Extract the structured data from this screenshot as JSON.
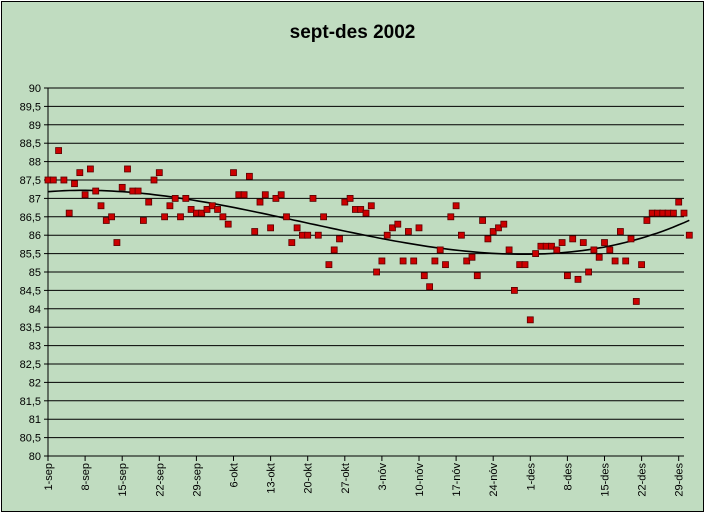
{
  "colors": {
    "chart_area": "#c0dcc0",
    "plot_area": "#c0dcc0",
    "gridline": "#000000",
    "marker_fill": "#cc0000",
    "marker_stroke": "#5a0000",
    "trendline": "#000000"
  },
  "chart_data": {
    "type": "scatter",
    "title": "sept-des 2002",
    "xlabel": "",
    "ylabel": "",
    "ylim": [
      80,
      90
    ],
    "y_ticks": [
      "80",
      "80,5",
      "81",
      "81,5",
      "82",
      "82,5",
      "83",
      "83,5",
      "84",
      "84,5",
      "85",
      "85,5",
      "86",
      "86,5",
      "87",
      "87,5",
      "88",
      "88,5",
      "89",
      "89,5",
      "90"
    ],
    "x_tick_labels": [
      "1-sep",
      "8-sep",
      "15-sep",
      "22-sep",
      "29-sep",
      "6-okt",
      "13-okt",
      "20-okt",
      "27-okt",
      "3-nóv",
      "10-nóv",
      "17-nóv",
      "24-nóv",
      "1-des",
      "8-des",
      "15-des",
      "22-des",
      "29-des"
    ],
    "x_tick_dates": [
      "2002-09-01",
      "2002-09-08",
      "2002-09-15",
      "2002-09-22",
      "2002-09-29",
      "2002-10-06",
      "2002-10-13",
      "2002-10-20",
      "2002-10-27",
      "2002-11-03",
      "2002-11-10",
      "2002-11-17",
      "2002-11-24",
      "2002-12-01",
      "2002-12-08",
      "2002-12-15",
      "2002-12-22",
      "2002-12-29"
    ],
    "xlim": [
      "2002-09-01",
      "2002-12-30"
    ],
    "grid": "horizontal",
    "legend": "none",
    "trendline": "polynomial",
    "series": [
      {
        "points": [
          [
            "2002-09-01",
            87.5
          ],
          [
            "2002-09-02",
            87.5
          ],
          [
            "2002-09-03",
            88.3
          ],
          [
            "2002-09-04",
            87.5
          ],
          [
            "2002-09-05",
            86.6
          ],
          [
            "2002-09-06",
            87.4
          ],
          [
            "2002-09-07",
            87.7
          ],
          [
            "2002-09-08",
            87.1
          ],
          [
            "2002-09-09",
            87.8
          ],
          [
            "2002-09-10",
            87.2
          ],
          [
            "2002-09-11",
            86.8
          ],
          [
            "2002-09-12",
            86.4
          ],
          [
            "2002-09-13",
            86.5
          ],
          [
            "2002-09-14",
            85.8
          ],
          [
            "2002-09-15",
            87.3
          ],
          [
            "2002-09-16",
            87.8
          ],
          [
            "2002-09-17",
            87.2
          ],
          [
            "2002-09-18",
            87.2
          ],
          [
            "2002-09-19",
            86.4
          ],
          [
            "2002-09-20",
            86.9
          ],
          [
            "2002-09-21",
            87.5
          ],
          [
            "2002-09-22",
            87.7
          ],
          [
            "2002-09-23",
            86.5
          ],
          [
            "2002-09-24",
            86.8
          ],
          [
            "2002-09-25",
            87.0
          ],
          [
            "2002-09-26",
            86.5
          ],
          [
            "2002-09-27",
            87.0
          ],
          [
            "2002-09-28",
            86.7
          ],
          [
            "2002-09-29",
            86.6
          ],
          [
            "2002-09-30",
            86.6
          ],
          [
            "2002-10-01",
            86.7
          ],
          [
            "2002-10-02",
            86.8
          ],
          [
            "2002-10-03",
            86.7
          ],
          [
            "2002-10-04",
            86.5
          ],
          [
            "2002-10-05",
            86.3
          ],
          [
            "2002-10-06",
            87.7
          ],
          [
            "2002-10-07",
            87.1
          ],
          [
            "2002-10-08",
            87.1
          ],
          [
            "2002-10-09",
            87.6
          ],
          [
            "2002-10-10",
            86.1
          ],
          [
            "2002-10-11",
            86.9
          ],
          [
            "2002-10-12",
            87.1
          ],
          [
            "2002-10-13",
            86.2
          ],
          [
            "2002-10-14",
            87.0
          ],
          [
            "2002-10-15",
            87.1
          ],
          [
            "2002-10-16",
            86.5
          ],
          [
            "2002-10-17",
            85.8
          ],
          [
            "2002-10-18",
            86.2
          ],
          [
            "2002-10-19",
            86.0
          ],
          [
            "2002-10-20",
            86.0
          ],
          [
            "2002-10-21",
            87.0
          ],
          [
            "2002-10-22",
            86.0
          ],
          [
            "2002-10-23",
            86.5
          ],
          [
            "2002-10-24",
            85.2
          ],
          [
            "2002-10-25",
            85.6
          ],
          [
            "2002-10-26",
            85.9
          ],
          [
            "2002-10-27",
            86.9
          ],
          [
            "2002-10-28",
            87.0
          ],
          [
            "2002-10-29",
            86.7
          ],
          [
            "2002-10-30",
            86.7
          ],
          [
            "2002-10-31",
            86.6
          ],
          [
            "2002-11-01",
            86.8
          ],
          [
            "2002-11-02",
            85.0
          ],
          [
            "2002-11-03",
            85.3
          ],
          [
            "2002-11-04",
            86.0
          ],
          [
            "2002-11-05",
            86.2
          ],
          [
            "2002-11-06",
            86.3
          ],
          [
            "2002-11-07",
            85.3
          ],
          [
            "2002-11-08",
            86.1
          ],
          [
            "2002-11-09",
            85.3
          ],
          [
            "2002-11-10",
            86.2
          ],
          [
            "2002-11-11",
            84.9
          ],
          [
            "2002-11-12",
            84.6
          ],
          [
            "2002-11-13",
            85.3
          ],
          [
            "2002-11-14",
            85.6
          ],
          [
            "2002-11-15",
            85.2
          ],
          [
            "2002-11-16",
            86.5
          ],
          [
            "2002-11-17",
            86.8
          ],
          [
            "2002-11-18",
            86.0
          ],
          [
            "2002-11-19",
            85.3
          ],
          [
            "2002-11-20",
            85.4
          ],
          [
            "2002-11-21",
            84.9
          ],
          [
            "2002-11-22",
            86.4
          ],
          [
            "2002-11-23",
            85.9
          ],
          [
            "2002-11-24",
            86.1
          ],
          [
            "2002-11-25",
            86.2
          ],
          [
            "2002-11-26",
            86.3
          ],
          [
            "2002-11-27",
            85.6
          ],
          [
            "2002-11-28",
            84.5
          ],
          [
            "2002-11-29",
            85.2
          ],
          [
            "2002-11-30",
            85.2
          ],
          [
            "2002-12-01",
            83.7
          ],
          [
            "2002-12-02",
            85.5
          ],
          [
            "2002-12-03",
            85.7
          ],
          [
            "2002-12-04",
            85.7
          ],
          [
            "2002-12-05",
            85.7
          ],
          [
            "2002-12-06",
            85.6
          ],
          [
            "2002-12-07",
            85.8
          ],
          [
            "2002-12-08",
            84.9
          ],
          [
            "2002-12-09",
            85.9
          ],
          [
            "2002-12-10",
            84.8
          ],
          [
            "2002-12-11",
            85.8
          ],
          [
            "2002-12-12",
            85.0
          ],
          [
            "2002-12-13",
            85.6
          ],
          [
            "2002-12-14",
            85.4
          ],
          [
            "2002-12-15",
            85.8
          ],
          [
            "2002-12-16",
            85.6
          ],
          [
            "2002-12-17",
            85.3
          ],
          [
            "2002-12-18",
            86.1
          ],
          [
            "2002-12-19",
            85.3
          ],
          [
            "2002-12-20",
            85.9
          ],
          [
            "2002-12-21",
            84.2
          ],
          [
            "2002-12-22",
            85.2
          ],
          [
            "2002-12-23",
            86.4
          ],
          [
            "2002-12-24",
            86.6
          ],
          [
            "2002-12-25",
            86.6
          ],
          [
            "2002-12-26",
            86.6
          ],
          [
            "2002-12-27",
            86.6
          ],
          [
            "2002-12-28",
            86.6
          ],
          [
            "2002-12-29",
            86.9
          ],
          [
            "2002-12-30",
            86.6
          ],
          [
            "2002-12-31",
            86.0
          ]
        ]
      }
    ]
  }
}
